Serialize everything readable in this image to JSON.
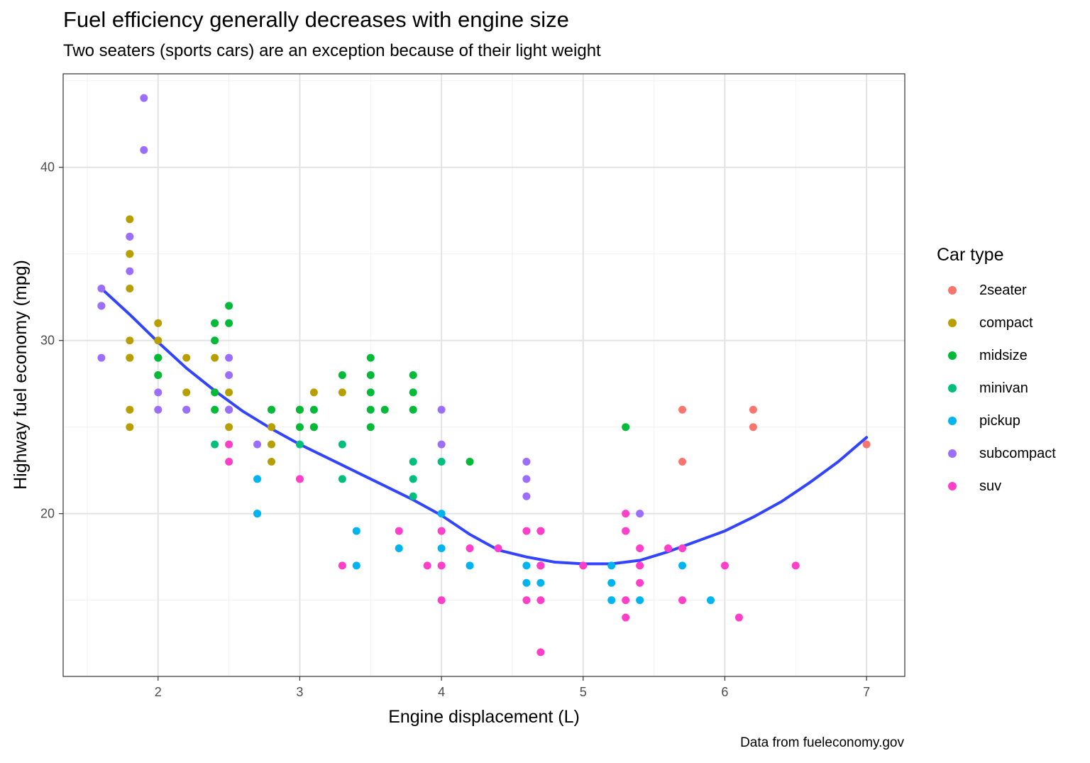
{
  "chart_data": {
    "type": "scatter",
    "title": "Fuel efficiency generally decreases with engine size",
    "subtitle": "Two seaters (sports cars) are an exception because of their light weight",
    "caption": "Data from fueleconomy.gov",
    "xlabel": "Engine displacement (L)",
    "ylabel": "Highway fuel economy (mpg)",
    "xlim": [
      1.33,
      7.27
    ],
    "ylim": [
      10.6,
      45.4
    ],
    "x_ticks": [
      2,
      3,
      4,
      5,
      6,
      7
    ],
    "y_ticks": [
      20,
      30,
      40
    ],
    "grid": true,
    "legend_title": "Car type",
    "legend_position": "right",
    "categories": [
      "2seater",
      "compact",
      "midsize",
      "minivan",
      "pickup",
      "subcompact",
      "suv"
    ],
    "colors": {
      "2seater": "#F8766D",
      "compact": "#B79F00",
      "midsize": "#00BA38",
      "minivan": "#00BF7D",
      "pickup": "#00B4EF",
      "subcompact": "#9B6EFF",
      "suv": "#FF3EC9"
    },
    "series": [
      {
        "name": "2seater",
        "points": [
          [
            5.7,
            26
          ],
          [
            5.7,
            23
          ],
          [
            6.2,
            26
          ],
          [
            6.2,
            25
          ],
          [
            7.0,
            24
          ]
        ]
      },
      {
        "name": "compact",
        "points": [
          [
            1.8,
            29
          ],
          [
            1.8,
            29
          ],
          [
            2.0,
            31
          ],
          [
            2.0,
            30
          ],
          [
            2.8,
            26
          ],
          [
            2.8,
            25
          ],
          [
            3.1,
            27
          ],
          [
            1.8,
            26
          ],
          [
            1.8,
            25
          ],
          [
            2.0,
            28
          ],
          [
            2.8,
            24
          ],
          [
            2.8,
            25
          ],
          [
            3.1,
            25
          ],
          [
            2.2,
            27
          ],
          [
            2.2,
            29
          ],
          [
            2.4,
            27
          ],
          [
            2.4,
            31
          ],
          [
            3.0,
            26
          ],
          [
            1.8,
            37
          ],
          [
            1.8,
            35
          ],
          [
            1.8,
            33
          ],
          [
            1.8,
            30
          ],
          [
            2.4,
            29
          ],
          [
            2.5,
            27
          ],
          [
            2.5,
            25
          ],
          [
            2.8,
            23
          ],
          [
            2.2,
            26
          ],
          [
            2.5,
            26
          ],
          [
            3.0,
            26
          ],
          [
            3.3,
            27
          ],
          [
            2.0,
            29
          ],
          [
            1.8,
            35
          ]
        ]
      },
      {
        "name": "midsize",
        "points": [
          [
            2.4,
            30
          ],
          [
            2.4,
            26
          ],
          [
            3.1,
            26
          ],
          [
            3.5,
            29
          ],
          [
            3.6,
            26
          ],
          [
            2.4,
            31
          ],
          [
            3.0,
            26
          ],
          [
            3.3,
            28
          ],
          [
            3.5,
            28
          ],
          [
            3.5,
            27
          ],
          [
            3.5,
            26
          ],
          [
            3.5,
            25
          ],
          [
            2.5,
            32
          ],
          [
            2.5,
            31
          ],
          [
            2.4,
            27
          ],
          [
            3.0,
            25
          ],
          [
            3.8,
            28
          ],
          [
            3.8,
            27
          ],
          [
            3.8,
            26
          ],
          [
            4.2,
            23
          ],
          [
            5.3,
            25
          ],
          [
            2.0,
            29
          ],
          [
            2.8,
            26
          ],
          [
            3.1,
            25
          ],
          [
            2.0,
            28
          ],
          [
            2.0,
            29
          ]
        ]
      },
      {
        "name": "minivan",
        "points": [
          [
            2.4,
            24
          ],
          [
            3.0,
            24
          ],
          [
            3.3,
            22
          ],
          [
            3.3,
            24
          ],
          [
            3.8,
            21
          ],
          [
            3.8,
            22
          ],
          [
            3.8,
            23
          ],
          [
            4.0,
            23
          ]
        ]
      },
      {
        "name": "pickup",
        "points": [
          [
            2.7,
            20
          ],
          [
            2.7,
            22
          ],
          [
            2.7,
            20
          ],
          [
            3.4,
            19
          ],
          [
            3.4,
            17
          ],
          [
            4.0,
            20
          ],
          [
            4.0,
            18
          ],
          [
            4.7,
            17
          ],
          [
            4.7,
            16
          ],
          [
            4.7,
            17
          ],
          [
            5.2,
            17
          ],
          [
            5.2,
            15
          ],
          [
            5.7,
            17
          ],
          [
            5.9,
            15
          ],
          [
            4.2,
            17
          ],
          [
            4.6,
            17
          ],
          [
            4.6,
            16
          ],
          [
            5.4,
            15
          ],
          [
            3.7,
            18
          ],
          [
            5.2,
            16
          ]
        ]
      },
      {
        "name": "subcompact",
        "points": [
          [
            1.6,
            33
          ],
          [
            1.6,
            32
          ],
          [
            1.6,
            29
          ],
          [
            1.6,
            32
          ],
          [
            1.8,
            34
          ],
          [
            1.8,
            36
          ],
          [
            1.8,
            36
          ],
          [
            2.0,
            26
          ],
          [
            2.0,
            27
          ],
          [
            2.2,
            26
          ],
          [
            2.5,
            26
          ],
          [
            2.5,
            28
          ],
          [
            2.5,
            29
          ],
          [
            2.7,
            24
          ],
          [
            1.9,
            44
          ],
          [
            1.9,
            41
          ],
          [
            4.0,
            26
          ],
          [
            4.0,
            24
          ],
          [
            4.6,
            23
          ],
          [
            4.6,
            22
          ],
          [
            4.6,
            21
          ],
          [
            5.4,
            20
          ],
          [
            2.5,
            26
          ]
        ]
      },
      {
        "name": "suv",
        "points": [
          [
            2.5,
            24
          ],
          [
            2.5,
            23
          ],
          [
            3.0,
            22
          ],
          [
            3.3,
            17
          ],
          [
            3.7,
            19
          ],
          [
            3.9,
            17
          ],
          [
            4.0,
            19
          ],
          [
            4.0,
            17
          ],
          [
            4.0,
            15
          ],
          [
            4.2,
            18
          ],
          [
            4.4,
            18
          ],
          [
            4.6,
            19
          ],
          [
            4.6,
            15
          ],
          [
            4.7,
            19
          ],
          [
            4.7,
            17
          ],
          [
            4.7,
            15
          ],
          [
            4.7,
            12
          ],
          [
            5.0,
            17
          ],
          [
            5.3,
            20
          ],
          [
            5.3,
            19
          ],
          [
            5.3,
            15
          ],
          [
            5.3,
            14
          ],
          [
            5.4,
            18
          ],
          [
            5.4,
            17
          ],
          [
            5.4,
            16
          ],
          [
            5.6,
            18
          ],
          [
            5.7,
            18
          ],
          [
            5.7,
            15
          ],
          [
            6.0,
            17
          ],
          [
            6.1,
            14
          ],
          [
            6.5,
            17
          ],
          [
            4.7,
            19
          ],
          [
            4.7,
            17
          ]
        ]
      }
    ],
    "smooth_line": {
      "color": "#3344FF",
      "x": [
        1.6,
        1.8,
        2.0,
        2.2,
        2.4,
        2.6,
        2.8,
        3.0,
        3.2,
        3.4,
        3.6,
        3.8,
        4.0,
        4.2,
        4.4,
        4.6,
        4.8,
        5.0,
        5.2,
        5.4,
        5.6,
        5.8,
        6.0,
        6.2,
        6.4,
        6.6,
        6.8,
        7.0
      ],
      "y": [
        33.0,
        31.5,
        29.9,
        28.4,
        27.1,
        25.9,
        24.9,
        24.0,
        23.2,
        22.4,
        21.6,
        20.8,
        19.9,
        18.8,
        17.9,
        17.5,
        17.2,
        17.1,
        17.1,
        17.3,
        17.8,
        18.4,
        19.0,
        19.8,
        20.7,
        21.8,
        23.0,
        24.4
      ]
    }
  }
}
